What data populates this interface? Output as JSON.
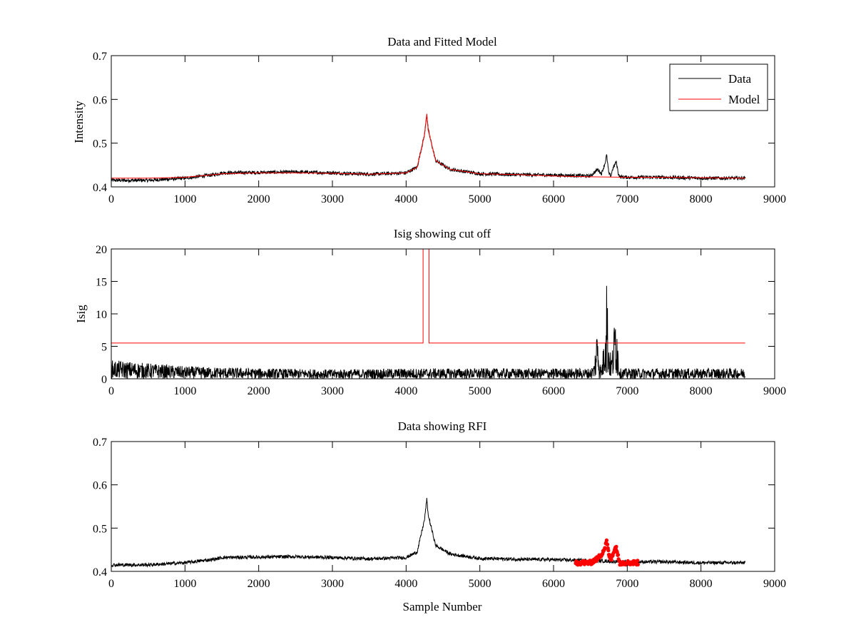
{
  "figure": {
    "background": "#ffffff",
    "colors": {
      "data": "#000000",
      "model": "#ff0000",
      "rfi": "#ff0000",
      "axes": "#000000"
    }
  },
  "chart_data": [
    {
      "type": "line",
      "title": "Data and Fitted Model",
      "xlabel": "",
      "ylabel": "Intensity",
      "xlim": [
        0,
        9000
      ],
      "ylim": [
        0.4,
        0.7
      ],
      "xticks": [
        0,
        1000,
        2000,
        3000,
        4000,
        5000,
        6000,
        7000,
        8000,
        9000
      ],
      "yticks": [
        0.4,
        0.5,
        0.6,
        0.7
      ],
      "xtick_labels": [
        "0",
        "1000",
        "2000",
        "3000",
        "4000",
        "5000",
        "6000",
        "7000",
        "8000",
        "9000"
      ],
      "ytick_labels": [
        "0.4",
        "0.5",
        "0.6",
        "0.7"
      ],
      "grid": false,
      "legend": {
        "position": "top-right",
        "entries": [
          "Data",
          "Model"
        ]
      },
      "series": [
        {
          "name": "Data",
          "color": "#000000",
          "noise_amplitude": 0.008,
          "x": [
            0,
            500,
            1000,
            1400,
            1500,
            2000,
            2500,
            3000,
            3500,
            4000,
            4150,
            4250,
            4280,
            4300,
            4400,
            4600,
            5000,
            5500,
            6000,
            6500,
            6600,
            6650,
            6700,
            6720,
            6750,
            6780,
            6800,
            6830,
            6850,
            6880,
            6900,
            7000,
            7500,
            8000,
            8600
          ],
          "y": [
            0.415,
            0.415,
            0.42,
            0.428,
            0.432,
            0.433,
            0.434,
            0.432,
            0.429,
            0.432,
            0.445,
            0.52,
            0.567,
            0.53,
            0.46,
            0.44,
            0.43,
            0.428,
            0.427,
            0.425,
            0.44,
            0.43,
            0.455,
            0.473,
            0.43,
            0.425,
            0.44,
            0.45,
            0.458,
            0.43,
            0.423,
            0.422,
            0.422,
            0.42,
            0.42
          ]
        },
        {
          "name": "Model",
          "color": "#ff0000",
          "x": [
            0,
            500,
            1000,
            1400,
            1500,
            2000,
            2500,
            3000,
            3500,
            4000,
            4150,
            4250,
            4280,
            4300,
            4400,
            4600,
            5000,
            5500,
            6000,
            6500,
            7000,
            7500,
            8000,
            8600
          ],
          "y": [
            0.42,
            0.42,
            0.422,
            0.428,
            0.43,
            0.432,
            0.432,
            0.431,
            0.429,
            0.432,
            0.445,
            0.52,
            0.567,
            0.53,
            0.46,
            0.44,
            0.43,
            0.428,
            0.425,
            0.423,
            0.422,
            0.422,
            0.421,
            0.42
          ]
        }
      ]
    },
    {
      "type": "line",
      "title": "Isig showing cut off",
      "xlabel": "",
      "ylabel": "Isig",
      "xlim": [
        0,
        9000
      ],
      "ylim": [
        0,
        20
      ],
      "xticks": [
        0,
        1000,
        2000,
        3000,
        4000,
        5000,
        6000,
        7000,
        8000,
        9000
      ],
      "yticks": [
        0,
        5,
        10,
        15,
        20
      ],
      "xtick_labels": [
        "0",
        "1000",
        "2000",
        "3000",
        "4000",
        "5000",
        "6000",
        "7000",
        "8000",
        "9000"
      ],
      "ytick_labels": [
        "0",
        "5",
        "10",
        "15",
        "20"
      ],
      "grid": false,
      "series": [
        {
          "color": "#000000",
          "noise_amplitude": 1.0,
          "x": [
            0,
            500,
            1000,
            2000,
            3000,
            4000,
            5000,
            6000,
            6500,
            6550,
            6600,
            6620,
            6650,
            6680,
            6700,
            6720,
            6740,
            6780,
            6800,
            6830,
            6850,
            6870,
            6900,
            7000,
            8000,
            8600
          ],
          "y": [
            1.8,
            1.5,
            1.2,
            1.0,
            0.9,
            1.0,
            1.0,
            1.0,
            1.0,
            1.5,
            6.0,
            2.0,
            1.0,
            3.5,
            8.0,
            11.5,
            5.0,
            2.0,
            3.0,
            6.0,
            9.0,
            4.0,
            1.0,
            1.0,
            1.0,
            1.0
          ]
        },
        {
          "color": "#ff0000",
          "x": [
            0,
            4230,
            4230,
            4310,
            4310,
            8600
          ],
          "y": [
            5.5,
            5.5,
            20,
            20,
            5.5,
            5.5
          ]
        }
      ]
    },
    {
      "type": "line",
      "title": "Data showing RFI",
      "xlabel": "Sample Number",
      "ylabel": "",
      "xlim": [
        0,
        9000
      ],
      "ylim": [
        0.4,
        0.7
      ],
      "xticks": [
        0,
        1000,
        2000,
        3000,
        4000,
        5000,
        6000,
        7000,
        8000,
        9000
      ],
      "yticks": [
        0.4,
        0.5,
        0.6,
        0.7
      ],
      "xtick_labels": [
        "0",
        "1000",
        "2000",
        "3000",
        "4000",
        "5000",
        "6000",
        "7000",
        "8000",
        "9000"
      ],
      "ytick_labels": [
        "0.4",
        "0.5",
        "0.6",
        "0.7"
      ],
      "grid": false,
      "series": [
        {
          "color": "#000000",
          "noise_amplitude": 0.008,
          "x": [
            0,
            500,
            1000,
            1400,
            1500,
            2000,
            2500,
            3000,
            3500,
            4000,
            4150,
            4250,
            4280,
            4300,
            4400,
            4600,
            5000,
            5500,
            6000,
            6500,
            7000,
            7500,
            8000,
            8600
          ],
          "y": [
            0.415,
            0.415,
            0.42,
            0.428,
            0.432,
            0.433,
            0.434,
            0.432,
            0.429,
            0.432,
            0.445,
            0.52,
            0.567,
            0.53,
            0.46,
            0.44,
            0.43,
            0.428,
            0.427,
            0.425,
            0.422,
            0.422,
            0.42,
            0.42
          ]
        },
        {
          "color": "#ff0000",
          "marker": "dot",
          "x": [
            6300,
            6500,
            6600,
            6650,
            6700,
            6720,
            6750,
            6780,
            6800,
            6830,
            6850,
            6880,
            6900,
            7000,
            7150
          ],
          "y": [
            0.42,
            0.42,
            0.43,
            0.44,
            0.455,
            0.47,
            0.44,
            0.425,
            0.44,
            0.45,
            0.458,
            0.43,
            0.42,
            0.42,
            0.42
          ]
        }
      ]
    }
  ]
}
